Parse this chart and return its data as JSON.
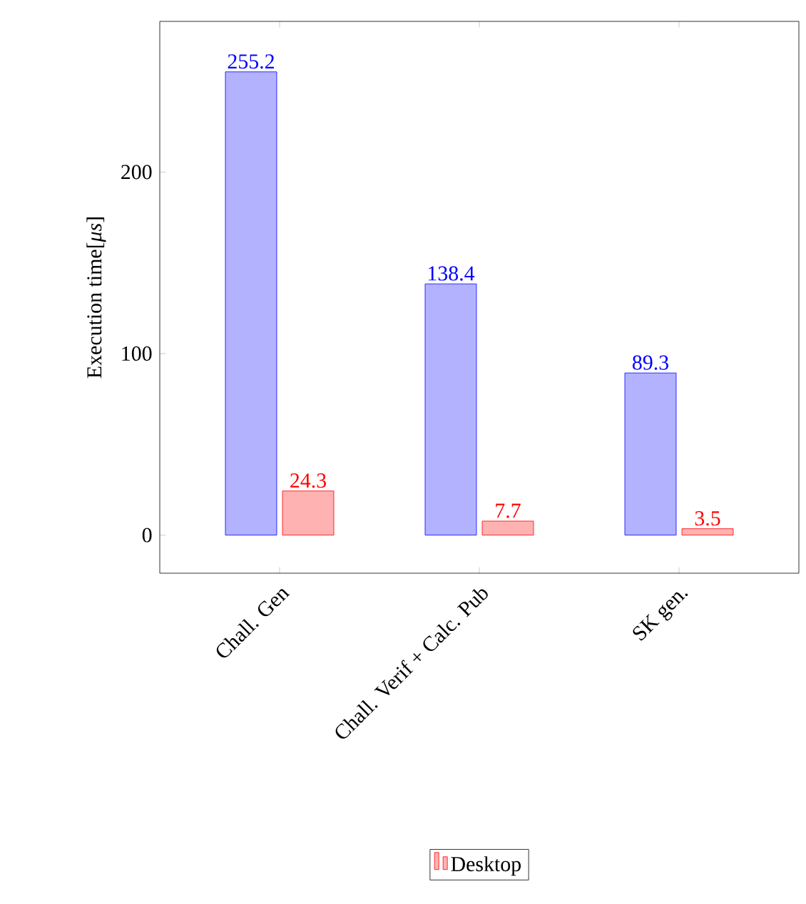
{
  "chart_data": {
    "type": "bar",
    "ylabel": "Execution time[*μs*]",
    "categories": [
      "Chall. Gen",
      "Chall. Verif + Calc. Pub",
      "SK gen."
    ],
    "series": [
      {
        "color": "#0000ff",
        "values": [
          255.2,
          138.4,
          89.3
        ],
        "value_labels": [
          "255.2",
          "138.4",
          "89.3"
        ]
      },
      {
        "name": "Desktop",
        "color": "#ff0000",
        "values": [
          24.3,
          7.7,
          3.5
        ],
        "value_labels": [
          "24.3",
          "7.7",
          "3.5"
        ]
      }
    ],
    "ylim": [
      -21,
      283
    ],
    "yticks": [
      0,
      100,
      200
    ],
    "legend": "bottom",
    "grid": false
  }
}
